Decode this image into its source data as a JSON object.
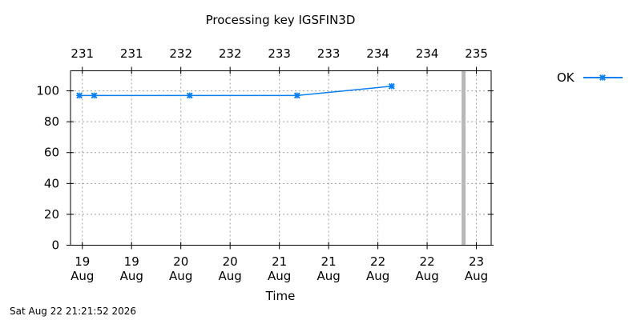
{
  "chart_data": {
    "type": "line",
    "title": "Processing key IGSFIN3D",
    "xlabel": "Time",
    "ylabel": "",
    "ylim": [
      0,
      113
    ],
    "xlim": [
      18.78,
      23.05
    ],
    "x_tick_values": [
      18.9,
      19.4,
      19.9,
      20.4,
      20.9,
      21.4,
      21.9,
      22.4,
      22.9
    ],
    "x_tick_labels": [
      "19 Aug",
      "19 Aug",
      "20 Aug",
      "20 Aug",
      "21 Aug",
      "21 Aug",
      "22 Aug",
      "22 Aug",
      "23 Aug"
    ],
    "top_axis_labels": [
      "231",
      "231",
      "232",
      "232",
      "233",
      "233",
      "234",
      "234",
      "235"
    ],
    "y_ticks": [
      0,
      20,
      40,
      60,
      80,
      100
    ],
    "grid": true,
    "legend_position": "right",
    "series": [
      {
        "name": "OK",
        "color": "#0a7ff0",
        "marker": "x-star",
        "x": [
          18.87,
          19.02,
          19.99,
          21.08,
          22.04
        ],
        "y": [
          97,
          97,
          97,
          97,
          103
        ]
      }
    ],
    "current_time_x": 22.77,
    "current_time_color": "#b8b8b8"
  },
  "footer": {
    "timestamp": "Sat Aug 22 21:21:52 2026"
  }
}
